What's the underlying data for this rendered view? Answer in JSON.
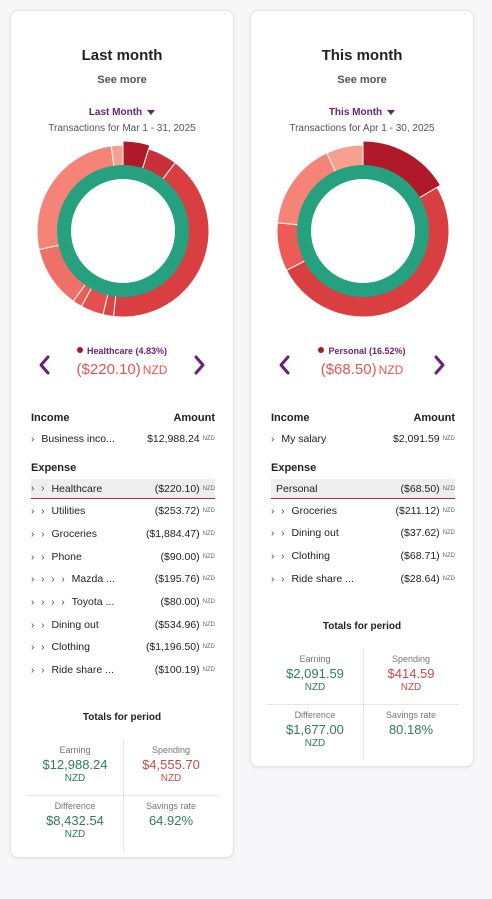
{
  "colors": {
    "accent": "#6a1f7a",
    "earning": "#2e7d5b",
    "spending": "#c94b45",
    "income_ring": "#26a17f",
    "highlight_underline": "#b22b33"
  },
  "cards": [
    {
      "title": "Last month",
      "see_more": "See more",
      "period_label": "Last Month",
      "range": "Transactions for Mar 1 - 31, 2025",
      "selected": {
        "label": "Healthcare (4.83%)",
        "amount": "($220.10)",
        "currency": "NZD",
        "color": "#a8182a"
      },
      "chart_data": {
        "type": "pie",
        "title": "",
        "inner_ring": [
          {
            "label": "Business income",
            "value": 12988.24,
            "color": "#26a17f"
          }
        ],
        "outer_ring": [
          {
            "label": "Healthcare",
            "value": 220.1,
            "color": "#b01929"
          },
          {
            "label": "Utilities",
            "value": 253.72,
            "color": "#c8303a"
          },
          {
            "label": "Groceries",
            "value": 1884.47,
            "color": "#d93f40"
          },
          {
            "label": "Phone",
            "value": 90.0,
            "color": "#dc4345"
          },
          {
            "label": "Mazda",
            "value": 195.76,
            "color": "#e5504f"
          },
          {
            "label": "Toyota",
            "value": 80.0,
            "color": "#e95e58"
          },
          {
            "label": "Dining out",
            "value": 534.96,
            "color": "#ef7068"
          },
          {
            "label": "Clothing",
            "value": 1196.5,
            "color": "#f58377"
          },
          {
            "label": "Ride share",
            "value": 100.19,
            "color": "#f8a090"
          }
        ],
        "highlight": "Healthcare"
      },
      "income_header": {
        "label": "Income",
        "amount": "Amount"
      },
      "income_rows": [
        {
          "chev": "›",
          "name": "Business inco...",
          "amount": "$12,988.24",
          "currency": "NZD"
        }
      ],
      "expense_header": "Expense",
      "expense_rows": [
        {
          "chev": "› ›",
          "name": "Healthcare",
          "amount": "($220.10)",
          "currency": "NZD",
          "highlight": true
        },
        {
          "chev": "› ›",
          "name": "Utilities",
          "amount": "($253.72)",
          "currency": "NZD"
        },
        {
          "chev": "› ›",
          "name": "Groceries",
          "amount": "($1,884.47)",
          "currency": "NZD"
        },
        {
          "chev": "› ›",
          "name": "Phone",
          "amount": "($90.00)",
          "currency": "NZD"
        },
        {
          "chev": "› › › ›",
          "name": "Mazda ...",
          "amount": "($195.76)",
          "currency": "NZD"
        },
        {
          "chev": "› › › ›",
          "name": "Toyota ...",
          "amount": "($80.00)",
          "currency": "NZD"
        },
        {
          "chev": "› ›",
          "name": "Dining out",
          "amount": "($534.96)",
          "currency": "NZD"
        },
        {
          "chev": "› ›",
          "name": "Clothing",
          "amount": "($1,196.50)",
          "currency": "NZD"
        },
        {
          "chev": "› ›",
          "name": "Ride share ...",
          "amount": "($100.19)",
          "currency": "NZD"
        }
      ],
      "totals": {
        "title": "Totals for period",
        "earning": {
          "label": "Earning",
          "value": "$12,988.24",
          "currency": "NZD"
        },
        "spending": {
          "label": "Spending",
          "value": "$4,555.70",
          "currency": "NZD"
        },
        "difference": {
          "label": "Difference",
          "value": "$8,432.54",
          "currency": "NZD"
        },
        "savings_rate": {
          "label": "Savings rate",
          "value": "64.92%"
        }
      }
    },
    {
      "title": "This month",
      "see_more": "See more",
      "period_label": "This Month",
      "range": "Transactions for Apr 1 - 30, 2025",
      "selected": {
        "label": "Personal (16.52%)",
        "amount": "($68.50)",
        "currency": "NZD",
        "color": "#a8182a"
      },
      "chart_data": {
        "type": "pie",
        "title": "",
        "inner_ring": [
          {
            "label": "My salary",
            "value": 2091.59,
            "color": "#26a17f"
          }
        ],
        "outer_ring": [
          {
            "label": "Personal",
            "value": 68.5,
            "color": "#b01929"
          },
          {
            "label": "Groceries",
            "value": 211.12,
            "color": "#d93f40"
          },
          {
            "label": "Dining out",
            "value": 37.62,
            "color": "#ee5a55"
          },
          {
            "label": "Clothing",
            "value": 68.71,
            "color": "#f58377"
          },
          {
            "label": "Ride share",
            "value": 28.64,
            "color": "#f8a090"
          }
        ],
        "highlight": "Personal"
      },
      "income_header": {
        "label": "Income",
        "amount": "Amount"
      },
      "income_rows": [
        {
          "chev": "›",
          "name": "My salary",
          "amount": "$2,091.59",
          "currency": "NZD"
        }
      ],
      "expense_header": "Expense",
      "expense_rows": [
        {
          "chev": "",
          "name": "Personal",
          "amount": "($68.50)",
          "currency": "NZD",
          "highlight": true
        },
        {
          "chev": "› ›",
          "name": "Groceries",
          "amount": "($211.12)",
          "currency": "NZD"
        },
        {
          "chev": "› ›",
          "name": "Dining out",
          "amount": "($37.62)",
          "currency": "NZD"
        },
        {
          "chev": "› ›",
          "name": "Clothing",
          "amount": "($68.71)",
          "currency": "NZD"
        },
        {
          "chev": "› ›",
          "name": "Ride share ...",
          "amount": "($28.64)",
          "currency": "NZD"
        }
      ],
      "totals": {
        "title": "Totals for period",
        "earning": {
          "label": "Earning",
          "value": "$2,091.59",
          "currency": "NZD"
        },
        "spending": {
          "label": "Spending",
          "value": "$414.59",
          "currency": "NZD"
        },
        "difference": {
          "label": "Difference",
          "value": "$1,677.00",
          "currency": "NZD"
        },
        "savings_rate": {
          "label": "Savings rate",
          "value": "80.18%"
        }
      }
    }
  ]
}
